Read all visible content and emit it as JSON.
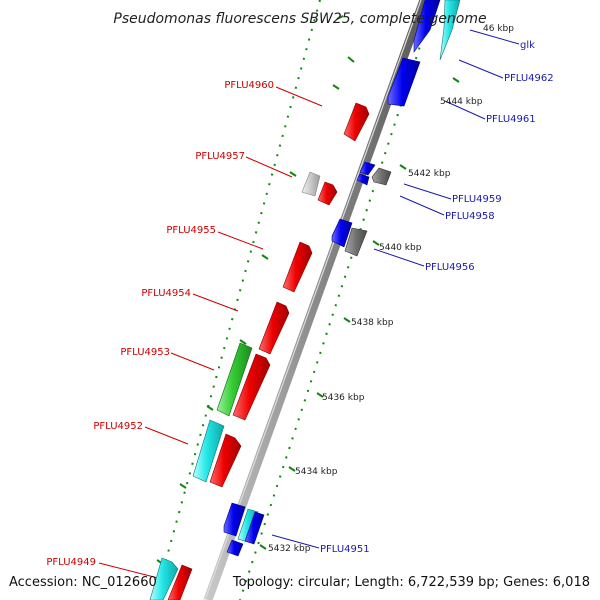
{
  "title": "Pseudomonas fluorescens SBW25, complete genome",
  "footer": {
    "accession": "Accession: NC_012660",
    "summary": "Topology: circular; Length: 6,722,539 bp; Genes: 6,018"
  },
  "colors": {
    "forward": "#ee0000",
    "reverse": "#0000ee",
    "cyan": "#22e6e6",
    "green": "#33cc33",
    "grey_dark": "#707070",
    "grey_light": "#c8c8c8",
    "backbone": "#888888",
    "tick": "#118811",
    "label_red": "#cc0000",
    "label_blue": "#1a1aaa"
  },
  "kbp_labels": [
    "5432 kbp",
    "5434 kbp",
    "5436 kbp",
    "5438 kbp",
    "5440 kbp",
    "5442 kbp",
    "5444 kbp",
    "46 kbp"
  ],
  "gene_labels": {
    "left": [
      "PFLU4960",
      "PFLU4957",
      "PFLU4955",
      "PFLU4954",
      "PFLU4953",
      "PFLU4952",
      "PFLU4949"
    ],
    "right": [
      "glk",
      "PFLU4962",
      "PFLU4961",
      "PFLU4959",
      "PFLU4958",
      "PFLU4956",
      "PFLU4951"
    ]
  }
}
